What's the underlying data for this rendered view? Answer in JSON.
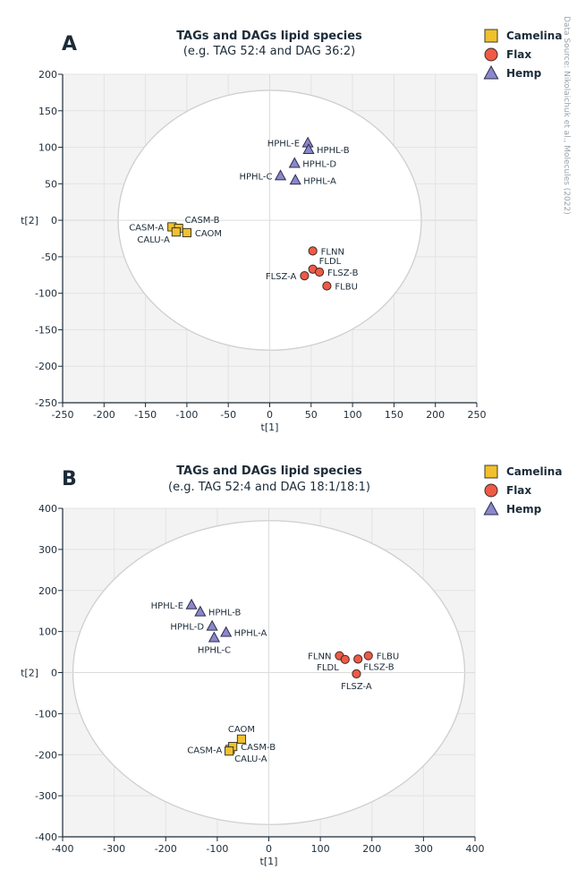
{
  "source_note": "Data Source: Nikolaichuk et al., Molecules (2022)",
  "legend": [
    {
      "name": "Camelina",
      "color": "#f0c02d",
      "marker": "square"
    },
    {
      "name": "Flax",
      "color": "#ee5a45",
      "marker": "circle"
    },
    {
      "name": "Hemp",
      "color": "#8a87cc",
      "marker": "triangle"
    }
  ],
  "chart_data": [
    {
      "panel": "A",
      "type": "scatter",
      "title": "TAGs and DAGs lipid species",
      "subtitle": "(e.g. TAG 52:4 and DAG 36:2)",
      "xlabel": "t[1]",
      "ylabel": "t[2]",
      "xlim": [
        -250,
        250
      ],
      "ylim": [
        -250,
        200
      ],
      "xticks": [
        -250,
        -200,
        -150,
        -100,
        -50,
        0,
        50,
        100,
        150,
        200,
        250
      ],
      "yticks": [
        -250,
        -200,
        -150,
        -100,
        -50,
        0,
        50,
        100,
        150,
        200
      ],
      "ellipse": {
        "rx": 183,
        "ry": 178
      },
      "series": [
        {
          "name": "Camelina",
          "points": [
            {
              "label": "CASM-A",
              "x": -118,
              "y": -9,
              "label_pos": "left"
            },
            {
              "label": "CASM-B",
              "x": -110,
              "y": -11,
              "label_pos": "upper-right"
            },
            {
              "label": "CALU-A",
              "x": -113,
              "y": -16,
              "label_pos": "lower-left"
            },
            {
              "label": "CAOM",
              "x": -100,
              "y": -17,
              "label_pos": "right"
            }
          ]
        },
        {
          "name": "Flax",
          "points": [
            {
              "label": "FLNN",
              "x": 52,
              "y": -42,
              "label_pos": "right"
            },
            {
              "label": "FLDL",
              "x": 52,
              "y": -67,
              "label_pos": "upper-right"
            },
            {
              "label": "FLSZ-B",
              "x": 60,
              "y": -71,
              "label_pos": "right"
            },
            {
              "label": "FLSZ-A",
              "x": 42,
              "y": -76,
              "label_pos": "left"
            },
            {
              "label": "FLBU",
              "x": 69,
              "y": -90,
              "label_pos": "right"
            }
          ]
        },
        {
          "name": "Hemp",
          "points": [
            {
              "label": "HPHL-E",
              "x": 46,
              "y": 106,
              "label_pos": "left"
            },
            {
              "label": "HPHL-B",
              "x": 47,
              "y": 97,
              "label_pos": "right"
            },
            {
              "label": "HPHL-D",
              "x": 30,
              "y": 78,
              "label_pos": "right"
            },
            {
              "label": "HPHL-C",
              "x": 13,
              "y": 61,
              "label_pos": "left"
            },
            {
              "label": "HPHL-A",
              "x": 31,
              "y": 55,
              "label_pos": "right"
            }
          ]
        }
      ]
    },
    {
      "panel": "B",
      "type": "scatter",
      "title": "TAGs and DAGs lipid species",
      "subtitle": "(e.g. TAG 52:4 and DAG 18:1/18:1)",
      "xlabel": "t[1]",
      "ylabel": "t[2]",
      "xlim": [
        -400,
        400
      ],
      "ylim": [
        -400,
        400
      ],
      "xticks": [
        -400,
        -300,
        -200,
        -100,
        0,
        100,
        200,
        300,
        400
      ],
      "yticks": [
        -400,
        -300,
        -200,
        -100,
        0,
        100,
        200,
        300,
        400
      ],
      "ellipse": {
        "rx": 380,
        "ry": 370
      },
      "series": [
        {
          "name": "Camelina",
          "points": [
            {
              "label": "CAOM",
              "x": -53,
              "y": -162,
              "label_pos": "above"
            },
            {
              "label": "CASM-A",
              "x": -75,
              "y": -187,
              "label_pos": "left"
            },
            {
              "label": "CASM-B",
              "x": -70,
              "y": -180,
              "label_pos": "right"
            },
            {
              "label": "CALU-A",
              "x": -77,
              "y": -191,
              "label_pos": "lower-right"
            }
          ]
        },
        {
          "name": "Flax",
          "points": [
            {
              "label": "FLNN",
              "x": 137,
              "y": 41,
              "label_pos": "left"
            },
            {
              "label": "FLDL",
              "x": 148,
              "y": 32,
              "label_pos": "lower-left"
            },
            {
              "label": "FLBU",
              "x": 193,
              "y": 41,
              "label_pos": "right"
            },
            {
              "label": "FLSZ-B",
              "x": 173,
              "y": 33,
              "label_pos": "lower-right"
            },
            {
              "label": "FLSZ-A",
              "x": 170,
              "y": -3,
              "label_pos": "below"
            }
          ]
        },
        {
          "name": "Hemp",
          "points": [
            {
              "label": "HPHL-E",
              "x": -150,
              "y": 165,
              "label_pos": "left"
            },
            {
              "label": "HPHL-B",
              "x": -133,
              "y": 148,
              "label_pos": "right"
            },
            {
              "label": "HPHL-D",
              "x": -110,
              "y": 113,
              "label_pos": "left"
            },
            {
              "label": "HPHL-A",
              "x": -83,
              "y": 98,
              "label_pos": "right"
            },
            {
              "label": "HPHL-C",
              "x": -106,
              "y": 85,
              "label_pos": "below"
            }
          ]
        }
      ]
    }
  ]
}
